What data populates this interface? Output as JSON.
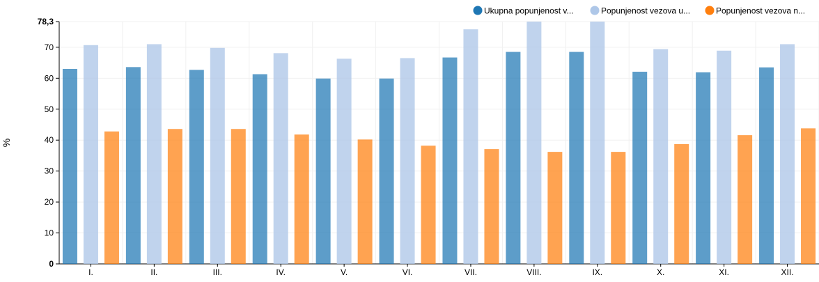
{
  "chart_data": {
    "type": "bar",
    "ylabel": "%",
    "ylim": [
      0,
      78.3
    ],
    "yticks": [
      0,
      10,
      20,
      30,
      40,
      50,
      60,
      70,
      78.3
    ],
    "ytick_labels": [
      "0",
      "10",
      "20",
      "30",
      "40",
      "50",
      "60",
      "70",
      "78,3"
    ],
    "grid": true,
    "legend_position": "top-right",
    "categories": [
      "I.",
      "II.",
      "III.",
      "IV.",
      "V.",
      "VI.",
      "VII.",
      "VIII.",
      "IX.",
      "X.",
      "XI.",
      "XII."
    ],
    "series": [
      {
        "name": "Ukupna popunjenost v...",
        "color": "#1f77b4",
        "values": [
          63.0,
          63.6,
          62.7,
          61.3,
          59.9,
          59.9,
          66.7,
          68.5,
          68.5,
          62.1,
          61.9,
          63.5
        ]
      },
      {
        "name": "Popunjenost vezova u...",
        "color": "#aec7e8",
        "values": [
          70.7,
          71.0,
          69.8,
          68.1,
          66.3,
          66.5,
          75.8,
          78.3,
          78.3,
          69.4,
          68.9,
          71.0
        ]
      },
      {
        "name": "Popunjenost vezova n...",
        "color": "#ff7f0e",
        "values": [
          42.8,
          43.6,
          43.6,
          41.8,
          40.2,
          38.2,
          37.1,
          36.2,
          36.2,
          38.7,
          41.6,
          43.8
        ]
      }
    ]
  }
}
